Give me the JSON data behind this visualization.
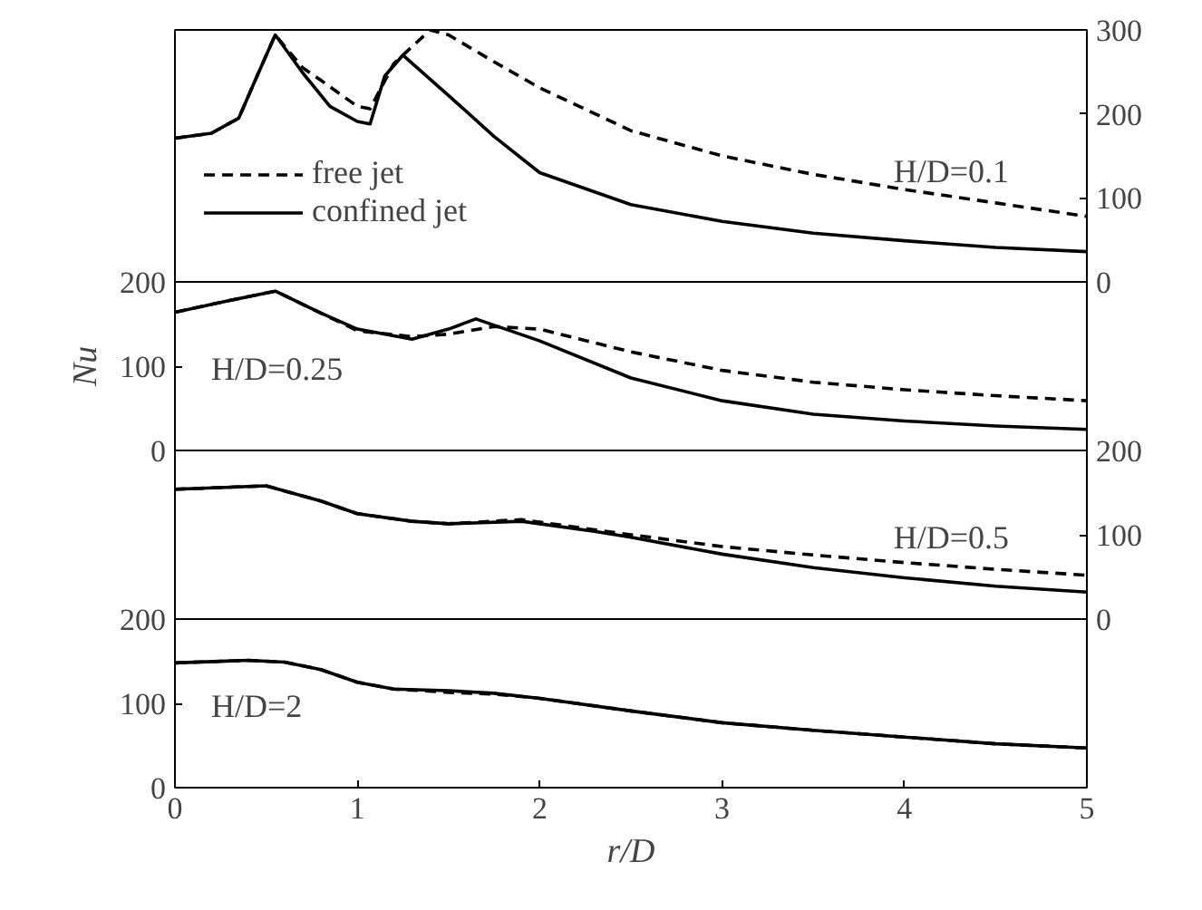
{
  "chart_data": [
    {
      "type": "line",
      "xlim": [
        0,
        5
      ],
      "y2lim": [
        0,
        300
      ],
      "y2ticks": [
        0,
        100,
        200,
        300
      ],
      "tick_labels": "y",
      "legend": "bottom left",
      "annotations": [
        "H/D=0.1"
      ],
      "series": [
        {
          "name": "free jet",
          "color": "#000000",
          "line_style": "dashed",
          "axis": "y2",
          "x": [
            0,
            0.2,
            0.35,
            0.45,
            0.55,
            0.7,
            0.8,
            1.0,
            1.07,
            1.2,
            1.4,
            1.5,
            1.75,
            2,
            2.5,
            3,
            3.5,
            4,
            4.5,
            5
          ],
          "values": [
            171,
            177,
            195,
            245,
            294,
            255,
            240,
            209,
            206,
            260,
            300,
            294,
            262,
            231,
            180,
            150,
            128,
            110,
            94,
            78
          ]
        },
        {
          "name": "confined jet",
          "color": "#000000",
          "line_style": "solid",
          "axis": "y2",
          "x": [
            0,
            0.2,
            0.35,
            0.45,
            0.55,
            0.7,
            0.85,
            1.0,
            1.07,
            1.15,
            1.25,
            1.5,
            1.75,
            2,
            2.5,
            3,
            3.5,
            4,
            4.5,
            5
          ],
          "values": [
            171,
            177,
            195,
            245,
            294,
            249,
            209,
            191,
            188,
            245,
            270,
            222,
            173,
            130,
            92,
            72,
            58,
            49,
            41,
            36
          ]
        }
      ]
    },
    {
      "type": "line",
      "xlim": [
        0,
        5
      ],
      "ylim": [
        0,
        200
      ],
      "yticks": [
        0,
        100,
        200
      ],
      "tick_labels": "y",
      "ylabel": "Nu",
      "annotations": [
        "H/D=0.25"
      ],
      "series": [
        {
          "color": "#000000",
          "line_style": "dashed",
          "x": [
            0,
            0.3,
            0.55,
            0.8,
            1.0,
            1.3,
            1.5,
            1.75,
            2,
            2.5,
            3,
            3.5,
            4,
            4.5,
            5
          ],
          "values": [
            164,
            178,
            189,
            163,
            142,
            135,
            138,
            147,
            144,
            117,
            95,
            81,
            72,
            65,
            59
          ]
        },
        {
          "color": "#000000",
          "line_style": "solid",
          "x": [
            0,
            0.3,
            0.55,
            0.8,
            1.0,
            1.3,
            1.5,
            1.65,
            2,
            2.5,
            3,
            3.5,
            4,
            4.5,
            5
          ],
          "values": [
            164,
            178,
            189,
            163,
            144,
            132,
            144,
            156,
            130,
            86,
            59,
            43,
            35,
            29,
            25
          ]
        }
      ]
    },
    {
      "type": "line",
      "xlim": [
        0,
        5
      ],
      "y2lim": [
        0,
        200
      ],
      "y2ticks": [
        0,
        100,
        200
      ],
      "tick_labels": "y",
      "annotations": [
        "H/D=0.5"
      ],
      "series": [
        {
          "color": "#000000",
          "line_style": "dashed",
          "axis": "y2",
          "x": [
            0,
            0.5,
            0.8,
            1.0,
            1.3,
            1.5,
            1.9,
            2.3,
            2.5,
            3,
            3.5,
            4,
            4.5,
            5
          ],
          "values": [
            154,
            158,
            140,
            125,
            116,
            113,
            118,
            106,
            100,
            86,
            76,
            67,
            59,
            52
          ]
        },
        {
          "color": "#000000",
          "line_style": "solid",
          "axis": "y2",
          "x": [
            0,
            0.5,
            0.8,
            1.0,
            1.3,
            1.5,
            1.9,
            2.3,
            2.5,
            3,
            3.5,
            4,
            4.5,
            5
          ],
          "values": [
            154,
            158,
            140,
            125,
            116,
            113,
            116,
            104,
            97,
            77,
            61,
            49,
            39,
            32
          ]
        }
      ]
    },
    {
      "type": "line",
      "xlim": [
        0,
        5
      ],
      "xticks": [
        0,
        1,
        2,
        3,
        4,
        5
      ],
      "ylim": [
        0,
        200
      ],
      "yticks": [
        0,
        100,
        200
      ],
      "xlabel": "r/D",
      "annotations": [
        "H/D=2"
      ],
      "series": [
        {
          "color": "#000000",
          "line_style": "dashed",
          "x": [
            0,
            0.4,
            0.6,
            0.8,
            1.0,
            1.2,
            1.5,
            1.75,
            2,
            2.5,
            3,
            3.5,
            4,
            4.5,
            5
          ],
          "values": [
            148,
            151,
            149,
            140,
            125,
            117,
            113,
            111,
            106,
            91,
            77,
            68,
            60,
            52,
            47
          ]
        },
        {
          "color": "#000000",
          "line_style": "solid",
          "x": [
            0,
            0.4,
            0.6,
            0.8,
            1.0,
            1.2,
            1.5,
            1.75,
            2,
            2.5,
            3,
            3.5,
            4,
            4.5,
            5
          ],
          "values": [
            148,
            151,
            149,
            140,
            125,
            117,
            115,
            112,
            106,
            91,
            77,
            68,
            60,
            52,
            47
          ]
        }
      ]
    }
  ]
}
